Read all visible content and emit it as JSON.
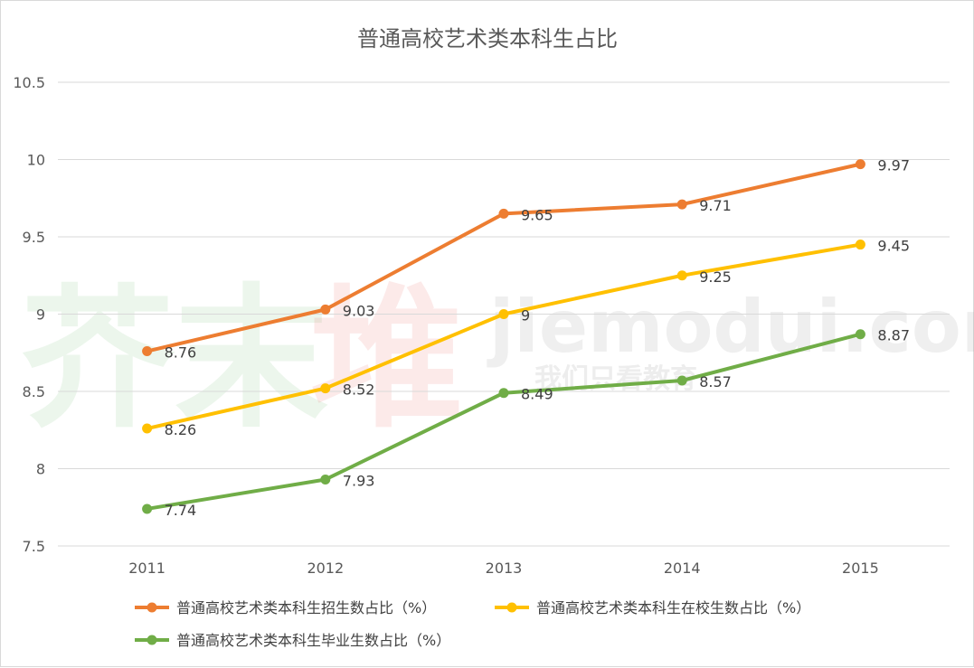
{
  "watermark": {
    "cn_part1": "芥末",
    "cn_part2": "堆",
    "domain": "jiemodui.com",
    "slogan": "我们只看教育",
    "color_green": "#4caf50",
    "color_red": "#e53935"
  },
  "chart_data": {
    "type": "line",
    "title": "普通高校艺术类本科生占比",
    "xlabel": "",
    "ylabel": "",
    "categories": [
      "2011",
      "2012",
      "2013",
      "2014",
      "2015"
    ],
    "ylim": [
      7.5,
      10.5
    ],
    "yticks": [
      7.5,
      8,
      8.5,
      9,
      9.5,
      10,
      10.5
    ],
    "ytick_labels": [
      "7.5",
      "8",
      "8.5",
      "9",
      "9.5",
      "10",
      "10.5"
    ],
    "grid": true,
    "legend_position": "bottom",
    "series": [
      {
        "name": "普通高校艺术类本科生招生数占比（%）",
        "color": "#ed7d31",
        "values": [
          8.76,
          9.03,
          9.65,
          9.71,
          9.97
        ],
        "labels": [
          "8.76",
          "9.03",
          "9.65",
          "9.71",
          "9.97"
        ]
      },
      {
        "name": "普通高校艺术类本科生在校生数占比（%）",
        "color": "#ffc000",
        "values": [
          8.26,
          8.52,
          9,
          9.25,
          9.45
        ],
        "labels": [
          "8.26",
          "8.52",
          "9",
          "9.25",
          "9.45"
        ]
      },
      {
        "name": "普通高校艺术类本科生毕业生数占比（%）",
        "color": "#70ad47",
        "values": [
          7.74,
          7.93,
          8.49,
          8.57,
          8.87
        ],
        "labels": [
          "7.74",
          "7.93",
          "8.49",
          "8.57",
          "8.87"
        ]
      }
    ]
  }
}
